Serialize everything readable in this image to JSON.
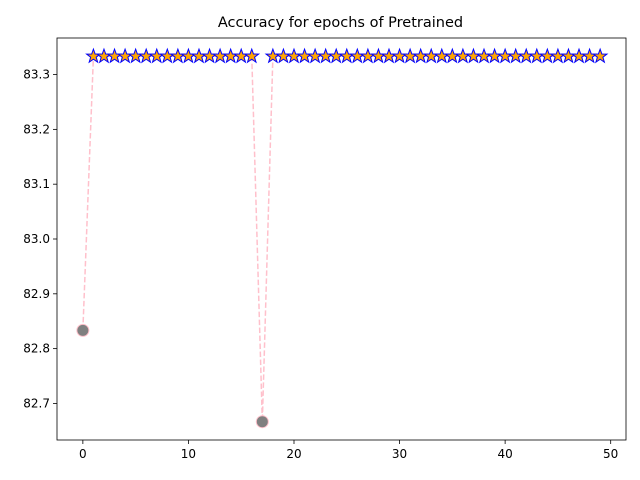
{
  "chart_data": {
    "type": "line",
    "title": "Accuracy for epochs of Pretrained",
    "xlabel": "",
    "ylabel": "",
    "xlim": [
      -2.45,
      51.45
    ],
    "ylim": [
      82.6333,
      83.3667
    ],
    "x_ticks": [
      0,
      10,
      20,
      30,
      40,
      50
    ],
    "x_tick_labels": [
      "0",
      "10",
      "20",
      "30",
      "40",
      "50"
    ],
    "y_ticks": [
      82.7,
      82.8,
      82.9,
      83.0,
      83.1,
      83.2,
      83.3
    ],
    "y_tick_labels": [
      "82.7",
      "82.8",
      "82.9",
      "83.0",
      "83.1",
      "83.2",
      "83.3"
    ],
    "grid": false,
    "x": [
      0,
      1,
      2,
      3,
      4,
      5,
      6,
      7,
      8,
      9,
      10,
      11,
      12,
      13,
      14,
      15,
      16,
      17,
      18,
      19,
      20,
      21,
      22,
      23,
      24,
      25,
      26,
      27,
      28,
      29,
      30,
      31,
      32,
      33,
      34,
      35,
      36,
      37,
      38,
      39,
      40,
      41,
      42,
      43,
      44,
      45,
      46,
      47,
      48,
      49
    ],
    "values": [
      82.8333,
      83.3333,
      83.3333,
      83.3333,
      83.3333,
      83.3333,
      83.3333,
      83.3333,
      83.3333,
      83.3333,
      83.3333,
      83.3333,
      83.3333,
      83.3333,
      83.3333,
      83.3333,
      83.3333,
      82.6667,
      83.3333,
      83.3333,
      83.3333,
      83.3333,
      83.3333,
      83.3333,
      83.3333,
      83.3333,
      83.3333,
      83.3333,
      83.3333,
      83.3333,
      83.3333,
      83.3333,
      83.3333,
      83.3333,
      83.3333,
      83.3333,
      83.3333,
      83.3333,
      83.3333,
      83.3333,
      83.3333,
      83.3333,
      83.3333,
      83.3333,
      83.3333,
      83.3333,
      83.3333,
      83.3333,
      83.3333,
      83.3333
    ],
    "max_value": 83.3333,
    "line_color": "#ffc0cb",
    "line_style": "dashed",
    "max_marker": "star",
    "max_marker_fill": "#ffa500",
    "max_marker_edge": "#0000ff",
    "other_marker": "circle",
    "other_marker_fill": "#808080",
    "other_marker_edge": "#ffc0cb"
  }
}
